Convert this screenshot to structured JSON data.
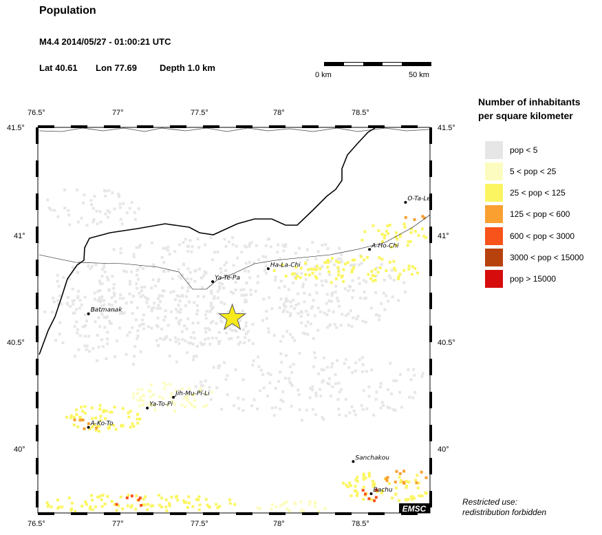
{
  "header": {
    "title": "Population",
    "event": "M4.4  2014/05/27 - 01:00:21 UTC",
    "lat_label": "Lat 40.61",
    "lon_label": "Lon  77.69",
    "depth_label": "Depth  1.0 km"
  },
  "scale_bar": {
    "start_label": "0 km",
    "end_label": "50 km"
  },
  "axes": {
    "lon_ticks": [
      "76.5°",
      "77°",
      "77.5°",
      "78°",
      "78.5°"
    ],
    "lat_ticks": [
      "41.5°",
      "41°",
      "40.5°",
      "40°"
    ]
  },
  "epicenter": {
    "lat": 40.61,
    "lon": 77.69,
    "color": "#f7ea1c"
  },
  "cities": [
    {
      "name": "O-Ta-Le",
      "lat": 41.15,
      "lon": 78.75
    },
    {
      "name": "A-Ho-Chi",
      "lat": 40.93,
      "lon": 78.53
    },
    {
      "name": "Ha-La-Chi",
      "lat": 40.84,
      "lon": 77.91
    },
    {
      "name": "Ya-Te-Pa",
      "lat": 40.78,
      "lon": 77.57
    },
    {
      "name": "Batmanak",
      "lat": 40.63,
      "lon": 76.81
    },
    {
      "name": "Jih-Mu-Pi-Li",
      "lat": 40.24,
      "lon": 77.33
    },
    {
      "name": "Ya-To-Pi",
      "lat": 40.19,
      "lon": 77.17
    },
    {
      "name": "A-Ko-To",
      "lat": 40.1,
      "lon": 76.81
    },
    {
      "name": "Sanchakou",
      "lat": 39.94,
      "lon": 78.43
    },
    {
      "name": "Bachu",
      "lat": 39.79,
      "lon": 78.54
    }
  ],
  "legend": {
    "title_line1": "Number of inhabitants",
    "title_line2": "per square kilometer",
    "items": [
      {
        "label": "pop < 5",
        "color": "#e6e6e6"
      },
      {
        "label": "5 < pop < 25",
        "color": "#fcfcc0"
      },
      {
        "label": "25 < pop < 125",
        "color": "#fbf561"
      },
      {
        "label": "125 < pop < 600",
        "color": "#f9a031"
      },
      {
        "label": "600 < pop < 3000",
        "color": "#f8531a"
      },
      {
        "label": "3000 < pop < 15000",
        "color": "#b7420d"
      },
      {
        "label": "pop > 15000",
        "color": "#d60c0c"
      }
    ]
  },
  "footer": {
    "restricted_line1": "Restricted use:",
    "restricted_line2": "redistribution forbidden",
    "logo_text": "EMSC"
  }
}
